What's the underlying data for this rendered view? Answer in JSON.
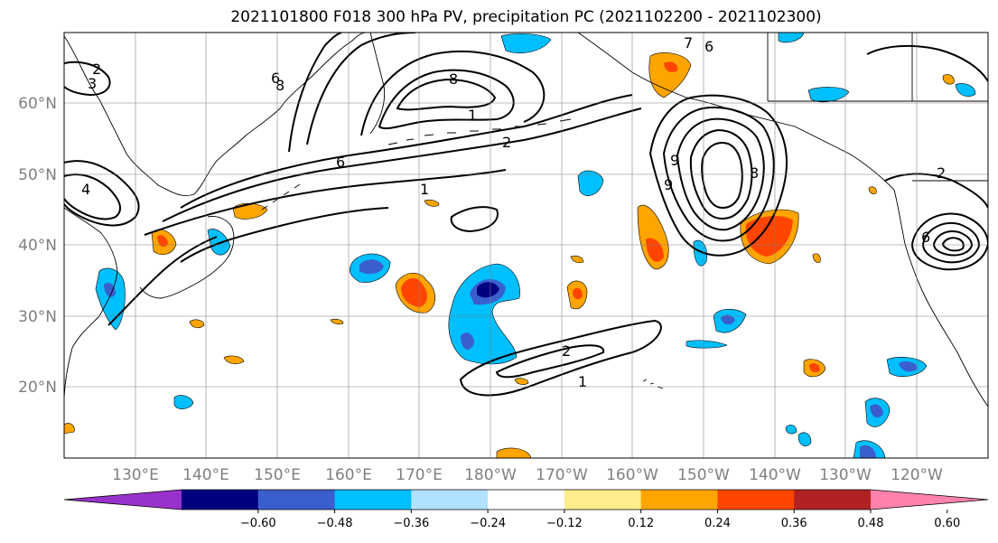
{
  "title": "2021101800 F018 300 hPa PV, precipitation PC (2021102200 - 2021102300)",
  "lat_labels": [
    "60°N",
    "50°N",
    "40°N",
    "30°N",
    "20°N"
  ],
  "lon_labels": [
    "130°E",
    "140°E",
    "150°E",
    "160°E",
    "170°E",
    "180°W",
    "170°W",
    "160°W",
    "150°W",
    "140°W",
    "130°W",
    "120°W"
  ],
  "colorbar": {
    "ticks": [
      "−0.60",
      "−0.48",
      "−0.36",
      "−0.24",
      "−0.12",
      "0.12",
      "0.24",
      "0.36",
      "0.48",
      "0.60"
    ],
    "colors": [
      "#9932cc",
      "#000080",
      "#3a5fcd",
      "#00bfff",
      "#b0e2ff",
      "#ffffff",
      "#ffec8b",
      "#ffa500",
      "#ff4500",
      "#b22222",
      "#ff82ab"
    ]
  },
  "contour_labels": [
    "8",
    "6",
    "4",
    "3",
    "2",
    "1",
    "1",
    "2",
    "6",
    "8",
    "2",
    "1",
    "6",
    "7",
    "8",
    "9",
    "9",
    "2",
    "6"
  ]
}
